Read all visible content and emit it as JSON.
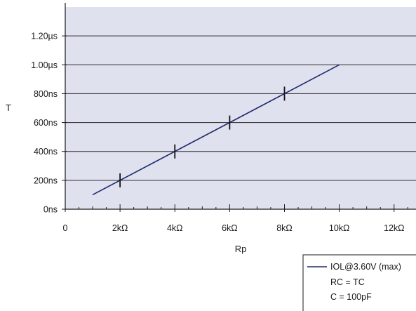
{
  "chart_data": {
    "type": "line",
    "xlabel": "Rp",
    "ylabel": "T",
    "xlim": [
      0,
      12.8
    ],
    "ylim": [
      0,
      1.4
    ],
    "x_ticks": [
      {
        "value": 0,
        "label": "0"
      },
      {
        "value": 2,
        "label": "2kΩ"
      },
      {
        "value": 4,
        "label": "4kΩ"
      },
      {
        "value": 6,
        "label": "6kΩ"
      },
      {
        "value": 8,
        "label": "8kΩ"
      },
      {
        "value": 10,
        "label": "10kΩ"
      },
      {
        "value": 12,
        "label": "12kΩ"
      }
    ],
    "y_ticks": [
      {
        "value": 0,
        "label": "0ns"
      },
      {
        "value": 0.2,
        "label": "200ns"
      },
      {
        "value": 0.4,
        "label": "400ns"
      },
      {
        "value": 0.6,
        "label": "600ns"
      },
      {
        "value": 0.8,
        "label": "800ns"
      },
      {
        "value": 1.0,
        "label": "1.00µs"
      },
      {
        "value": 1.2,
        "label": "1.20µs"
      }
    ],
    "grid": "horizontal",
    "legend_position": "bottom-right",
    "series": [
      {
        "name": "IOL@3.60V (max)",
        "color": "#1f2a6b",
        "x": [
          1,
          10
        ],
        "y": [
          0.1,
          1.0
        ],
        "markers": [
          {
            "x": 2,
            "y": 0.2
          },
          {
            "x": 4,
            "y": 0.4
          },
          {
            "x": 6,
            "y": 0.6
          },
          {
            "x": 8,
            "y": 0.8
          }
        ]
      }
    ],
    "legend_lines": [
      "RC = TC",
      "C = 100pF"
    ],
    "colors": {
      "plot_background": "#dfe1ef",
      "grid": "#2a2a2a",
      "axis": "#1a1a1a"
    }
  }
}
